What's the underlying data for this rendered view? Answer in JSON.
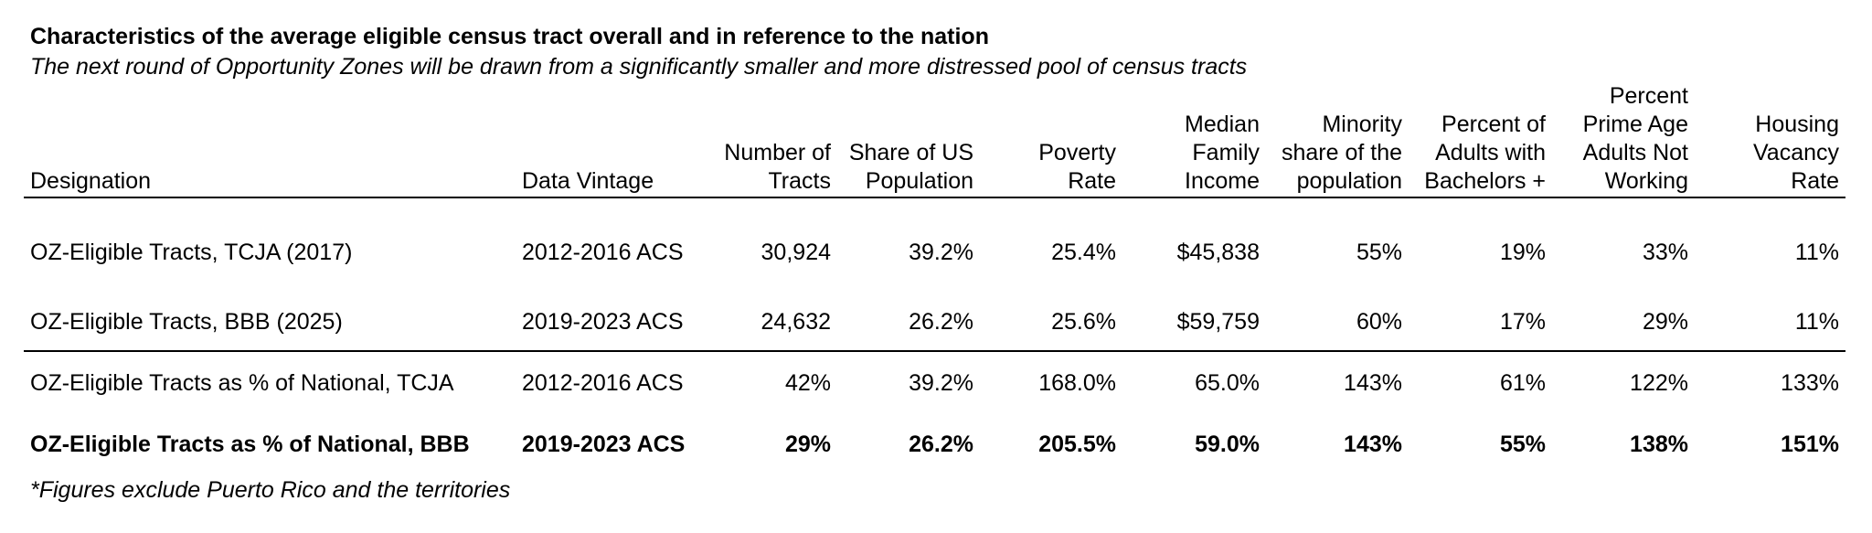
{
  "title": "Characteristics of the average eligible census tract overall and in reference to the nation",
  "subtitle": "The next round of Opportunity Zones will be drawn from a significantly smaller and more distressed pool of census tracts",
  "table": {
    "headers": [
      [
        "Designation"
      ],
      [
        "Data Vintage"
      ],
      [
        "Number of",
        "Tracts"
      ],
      [
        "Share of US",
        "Population"
      ],
      [
        "Poverty",
        "Rate"
      ],
      [
        "Median",
        "Family",
        "Income"
      ],
      [
        "Minority",
        "share of the",
        "population"
      ],
      [
        "Percent of",
        "Adults with",
        "Bachelors +"
      ],
      [
        "Percent",
        "Prime Age",
        "Adults Not",
        "Working"
      ],
      [
        "Housing",
        "Vacancy",
        "Rate"
      ]
    ],
    "rows": [
      [
        "OZ-Eligible Tracts, TCJA (2017)",
        "2012-2016 ACS",
        "30,924",
        "39.2%",
        "25.4%",
        "$45,838",
        "55%",
        "19%",
        "33%",
        "11%"
      ],
      [
        "OZ-Eligible Tracts, BBB (2025)",
        "2019-2023 ACS",
        "24,632",
        "26.2%",
        "25.6%",
        "$59,759",
        "60%",
        "17%",
        "29%",
        "11%"
      ],
      [
        "OZ-Eligible Tracts as % of National, TCJA",
        "2012-2016 ACS",
        "42%",
        "39.2%",
        "168.0%",
        "65.0%",
        "143%",
        "61%",
        "122%",
        "133%"
      ],
      [
        "OZ-Eligible Tracts as % of National, BBB",
        "2019-2023 ACS",
        "29%",
        "26.2%",
        "205.5%",
        "59.0%",
        "143%",
        "55%",
        "138%",
        "151%"
      ]
    ]
  },
  "footnote": "*Figures exclude Puerto Rico and the territories"
}
